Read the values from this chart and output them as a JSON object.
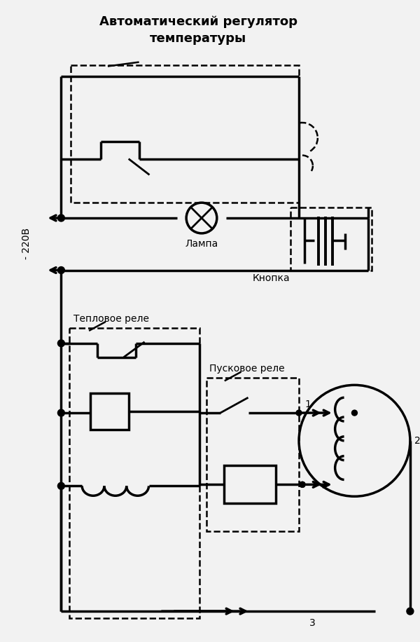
{
  "title_line1": "Автоматический регулятор",
  "title_line2": "температуры",
  "label_lampa": "Лампа",
  "label_knopka": "Кнопка",
  "label_teplovoe": "Тепловое реле",
  "label_puskovoe": "Пусковое реле",
  "label_220": "- 220В",
  "label_1": "1",
  "label_2": "2",
  "label_3": "3",
  "bg_color": "#f2f2f2",
  "line_color": "#000000"
}
